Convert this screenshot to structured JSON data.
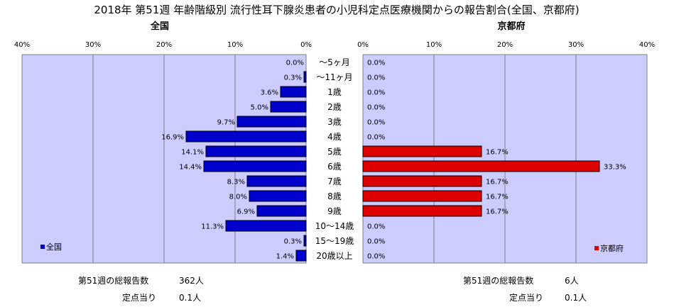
{
  "title": "2018年 第51週 年齢階級別 流行性耳下腺炎患者の小児科定点医療機関からの報告割合(全国、京都府)",
  "chart_data": {
    "type": "bar",
    "orientation": "horizontal-butterfly",
    "categories": [
      "～5ヶ月",
      "～11ヶ月",
      "1歳",
      "2歳",
      "3歳",
      "4歳",
      "5歳",
      "6歳",
      "7歳",
      "8歳",
      "9歳",
      "10～14歳",
      "15～19歳",
      "20歳以上"
    ],
    "xlim": [
      0,
      40
    ],
    "ticks": [
      0,
      10,
      20,
      30,
      40
    ],
    "tick_labels": [
      "0%",
      "10%",
      "20%",
      "30%",
      "40%"
    ],
    "series": [
      {
        "name": "全国",
        "panel_title": "全国",
        "side": "left",
        "color": "#0000cc",
        "values": [
          0.0,
          0.3,
          3.6,
          5.0,
          9.7,
          16.9,
          14.1,
          14.4,
          8.3,
          8.0,
          6.9,
          11.3,
          0.3,
          1.4
        ],
        "labels": [
          "0.0%",
          "0.3%",
          "3.6%",
          "5.0%",
          "9.7%",
          "16.9%",
          "14.1%",
          "14.4%",
          "8.3%",
          "8.0%",
          "6.9%",
          "11.3%",
          "0.3%",
          "1.4%"
        ]
      },
      {
        "name": "京都府",
        "panel_title": "京都府",
        "side": "right",
        "color": "#dd0000",
        "values": [
          0.0,
          0.0,
          0.0,
          0.0,
          0.0,
          0.0,
          16.7,
          33.3,
          16.7,
          16.7,
          16.7,
          0.0,
          0.0,
          0.0
        ],
        "labels": [
          "0.0%",
          "0.0%",
          "0.0%",
          "0.0%",
          "0.0%",
          "0.0%",
          "16.7%",
          "33.3%",
          "16.7%",
          "16.7%",
          "16.7%",
          "0.0%",
          "0.0%",
          "0.0%"
        ]
      }
    ],
    "plot_background": "#ccccff",
    "grid": true,
    "legend_placement": "bottom-left / bottom-right"
  },
  "footer": {
    "left": {
      "total_label": "第51週の総報告数",
      "total_value": "362人",
      "per_label": "定点当り",
      "per_value": "0.1人"
    },
    "right": {
      "total_label": "第51週の総報告数",
      "total_value": "6人",
      "per_label": "定点当り",
      "per_value": "0.1人"
    }
  }
}
